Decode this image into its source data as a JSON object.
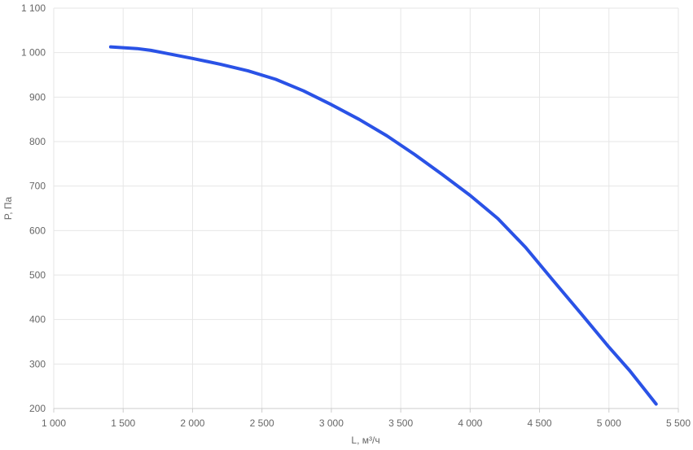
{
  "chart_data": {
    "type": "line",
    "xlabel": "L, м³/ч",
    "ylabel": "P, Па",
    "xlim": [
      1000,
      5500
    ],
    "ylim": [
      200,
      1100
    ],
    "x_ticks": [
      {
        "value": 1000,
        "label": "1 000"
      },
      {
        "value": 1500,
        "label": "1 500"
      },
      {
        "value": 2000,
        "label": "2 000"
      },
      {
        "value": 2500,
        "label": "2 500"
      },
      {
        "value": 3000,
        "label": "3 000"
      },
      {
        "value": 3500,
        "label": "3 500"
      },
      {
        "value": 4000,
        "label": "4 000"
      },
      {
        "value": 4500,
        "label": "4 500"
      },
      {
        "value": 5000,
        "label": "5 000"
      },
      {
        "value": 5500,
        "label": "5 500"
      }
    ],
    "y_ticks": [
      {
        "value": 200,
        "label": "200"
      },
      {
        "value": 300,
        "label": "300"
      },
      {
        "value": 400,
        "label": "400"
      },
      {
        "value": 500,
        "label": "500"
      },
      {
        "value": 600,
        "label": "600"
      },
      {
        "value": 700,
        "label": "700"
      },
      {
        "value": 800,
        "label": "800"
      },
      {
        "value": 900,
        "label": "900"
      },
      {
        "value": 1000,
        "label": "1 000"
      },
      {
        "value": 1100,
        "label": "1 100"
      }
    ],
    "grid": true,
    "legend": "none",
    "series": [
      {
        "color": "#2a52e6",
        "x": [
          1410,
          1600,
          1700,
          1800,
          2000,
          2200,
          2400,
          2600,
          2800,
          3000,
          3200,
          3400,
          3600,
          3800,
          4000,
          4200,
          4400,
          4600,
          4800,
          5000,
          5150,
          5340
        ],
        "y": [
          1013,
          1009,
          1005,
          999,
          987,
          974,
          959,
          940,
          914,
          883,
          850,
          813,
          771,
          726,
          679,
          627,
          562,
          487,
          413,
          338,
          285,
          210
        ]
      }
    ]
  }
}
